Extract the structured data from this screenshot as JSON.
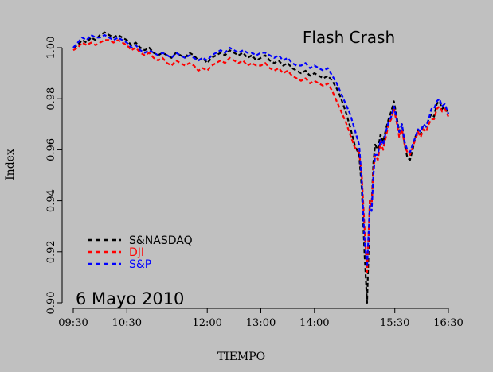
{
  "chart_data": {
    "type": "line",
    "title": "Flash Crash",
    "annotation": "6 Mayo 2010",
    "xlabel": "TIEMPO",
    "ylabel": "Index",
    "x_tick_labels": [
      "09:30",
      "10:30",
      "12:00",
      "13:00",
      "14:00",
      "15:30",
      "16:30"
    ],
    "x_tick_minutes": [
      570,
      630,
      720,
      780,
      840,
      930,
      990
    ],
    "xlim_minutes": [
      570,
      990
    ],
    "y_ticks": [
      0.9,
      0.92,
      0.94,
      0.96,
      0.98,
      1.0
    ],
    "y_tick_labels": [
      "0.90",
      "0.92",
      "0.94",
      "0.96",
      "0.98",
      "1.00"
    ],
    "ylim": [
      0.9,
      1.005
    ],
    "grid": false,
    "legend_position": "bottom-left",
    "series": [
      {
        "name": "S&NASDAQ",
        "color": "#000000",
        "x": [
          570,
          575,
          580,
          585,
          590,
          595,
          600,
          605,
          610,
          615,
          620,
          625,
          630,
          635,
          640,
          645,
          650,
          655,
          660,
          665,
          670,
          675,
          680,
          685,
          690,
          695,
          700,
          705,
          710,
          715,
          720,
          725,
          730,
          735,
          740,
          745,
          750,
          755,
          760,
          765,
          770,
          775,
          780,
          785,
          790,
          795,
          800,
          805,
          810,
          815,
          820,
          825,
          830,
          835,
          840,
          845,
          850,
          855,
          860,
          865,
          870,
          875,
          880,
          885,
          890,
          893,
          896,
          899,
          901,
          902,
          904,
          906,
          908,
          911,
          914,
          917,
          920,
          923,
          926,
          929,
          932,
          935,
          938,
          941,
          944,
          947,
          950,
          953,
          956,
          959,
          962,
          965,
          968,
          971,
          974,
          977,
          980,
          983,
          986,
          990
        ],
        "y": [
          1.0,
          1.001,
          1.003,
          1.002,
          1.004,
          1.003,
          1.005,
          1.006,
          1.005,
          1.004,
          1.005,
          1.004,
          1.003,
          1.001,
          1.002,
          1.0,
          0.999,
          1.0,
          0.998,
          0.997,
          0.998,
          0.997,
          0.996,
          0.998,
          0.997,
          0.996,
          0.998,
          0.997,
          0.995,
          0.996,
          0.994,
          0.996,
          0.997,
          0.998,
          0.997,
          0.999,
          0.998,
          0.997,
          0.998,
          0.996,
          0.997,
          0.995,
          0.996,
          0.997,
          0.995,
          0.994,
          0.995,
          0.993,
          0.994,
          0.992,
          0.991,
          0.99,
          0.991,
          0.989,
          0.99,
          0.989,
          0.988,
          0.989,
          0.987,
          0.984,
          0.98,
          0.975,
          0.969,
          0.962,
          0.958,
          0.945,
          0.92,
          0.9,
          0.925,
          0.94,
          0.938,
          0.955,
          0.962,
          0.96,
          0.966,
          0.963,
          0.968,
          0.972,
          0.975,
          0.979,
          0.973,
          0.967,
          0.97,
          0.962,
          0.957,
          0.956,
          0.96,
          0.965,
          0.968,
          0.966,
          0.97,
          0.969,
          0.972,
          0.974,
          0.973,
          0.978,
          0.979,
          0.976,
          0.977,
          0.974
        ]
      },
      {
        "name": "DJI",
        "color": "#ff0000",
        "x": [
          570,
          575,
          580,
          585,
          590,
          595,
          600,
          605,
          610,
          615,
          620,
          625,
          630,
          635,
          640,
          645,
          650,
          655,
          660,
          665,
          670,
          675,
          680,
          685,
          690,
          695,
          700,
          705,
          710,
          715,
          720,
          725,
          730,
          735,
          740,
          745,
          750,
          755,
          760,
          765,
          770,
          775,
          780,
          785,
          790,
          795,
          800,
          805,
          810,
          815,
          820,
          825,
          830,
          835,
          840,
          845,
          850,
          855,
          860,
          865,
          870,
          875,
          880,
          885,
          890,
          893,
          896,
          899,
          901,
          902,
          904,
          906,
          908,
          911,
          914,
          917,
          920,
          923,
          926,
          929,
          932,
          935,
          938,
          941,
          944,
          947,
          950,
          953,
          956,
          959,
          962,
          965,
          968,
          971,
          974,
          977,
          980,
          983,
          986,
          990
        ],
        "y": [
          0.999,
          1.0,
          1.002,
          1.001,
          1.002,
          1.001,
          1.002,
          1.003,
          1.003,
          1.002,
          1.003,
          1.002,
          1.001,
          0.999,
          1.0,
          0.998,
          0.997,
          0.998,
          0.996,
          0.995,
          0.996,
          0.994,
          0.993,
          0.995,
          0.994,
          0.993,
          0.994,
          0.993,
          0.991,
          0.992,
          0.991,
          0.993,
          0.994,
          0.995,
          0.994,
          0.996,
          0.995,
          0.994,
          0.995,
          0.993,
          0.994,
          0.993,
          0.993,
          0.994,
          0.992,
          0.991,
          0.992,
          0.99,
          0.991,
          0.989,
          0.988,
          0.987,
          0.988,
          0.986,
          0.987,
          0.986,
          0.985,
          0.986,
          0.983,
          0.979,
          0.975,
          0.971,
          0.966,
          0.961,
          0.959,
          0.95,
          0.93,
          0.912,
          0.93,
          0.94,
          0.938,
          0.952,
          0.958,
          0.956,
          0.963,
          0.96,
          0.965,
          0.97,
          0.972,
          0.976,
          0.971,
          0.965,
          0.968,
          0.962,
          0.959,
          0.958,
          0.961,
          0.964,
          0.967,
          0.965,
          0.968,
          0.967,
          0.97,
          0.972,
          0.972,
          0.976,
          0.977,
          0.975,
          0.976,
          0.973
        ]
      },
      {
        "name": "S&P",
        "color": "#0000ff",
        "x": [
          570,
          575,
          580,
          585,
          590,
          595,
          600,
          605,
          610,
          615,
          620,
          625,
          630,
          635,
          640,
          645,
          650,
          655,
          660,
          665,
          670,
          675,
          680,
          685,
          690,
          695,
          700,
          705,
          710,
          715,
          720,
          725,
          730,
          735,
          740,
          745,
          750,
          755,
          760,
          765,
          770,
          775,
          780,
          785,
          790,
          795,
          800,
          805,
          810,
          815,
          820,
          825,
          830,
          835,
          840,
          845,
          850,
          855,
          860,
          865,
          870,
          875,
          880,
          885,
          890,
          893,
          896,
          899,
          901,
          902,
          904,
          906,
          908,
          911,
          914,
          917,
          920,
          923,
          926,
          929,
          932,
          935,
          938,
          941,
          944,
          947,
          950,
          953,
          956,
          959,
          962,
          965,
          968,
          971,
          974,
          977,
          980,
          983,
          986,
          990
        ],
        "y": [
          1.0,
          1.002,
          1.004,
          1.003,
          1.005,
          1.004,
          1.004,
          1.005,
          1.004,
          1.003,
          1.004,
          1.003,
          1.002,
          1.0,
          1.001,
          0.999,
          0.998,
          0.999,
          0.998,
          0.997,
          0.998,
          0.997,
          0.996,
          0.998,
          0.997,
          0.996,
          0.997,
          0.996,
          0.995,
          0.996,
          0.995,
          0.997,
          0.998,
          0.999,
          0.998,
          1.0,
          0.999,
          0.998,
          0.999,
          0.998,
          0.998,
          0.997,
          0.998,
          0.998,
          0.997,
          0.996,
          0.997,
          0.995,
          0.996,
          0.994,
          0.993,
          0.993,
          0.994,
          0.992,
          0.993,
          0.992,
          0.991,
          0.992,
          0.989,
          0.986,
          0.982,
          0.978,
          0.974,
          0.968,
          0.962,
          0.948,
          0.925,
          0.914,
          0.93,
          0.938,
          0.936,
          0.95,
          0.958,
          0.958,
          0.964,
          0.962,
          0.967,
          0.971,
          0.973,
          0.977,
          0.972,
          0.967,
          0.97,
          0.963,
          0.96,
          0.959,
          0.962,
          0.965,
          0.968,
          0.967,
          0.97,
          0.969,
          0.972,
          0.976,
          0.976,
          0.979,
          0.98,
          0.977,
          0.978,
          0.974
        ]
      }
    ]
  }
}
